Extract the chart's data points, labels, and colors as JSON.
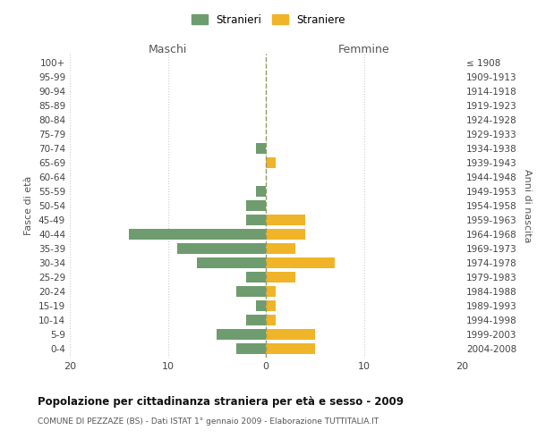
{
  "age_groups": [
    "0-4",
    "5-9",
    "10-14",
    "15-19",
    "20-24",
    "25-29",
    "30-34",
    "35-39",
    "40-44",
    "45-49",
    "50-54",
    "55-59",
    "60-64",
    "65-69",
    "70-74",
    "75-79",
    "80-84",
    "85-89",
    "90-94",
    "95-99",
    "100+"
  ],
  "birth_years": [
    "2004-2008",
    "1999-2003",
    "1994-1998",
    "1989-1993",
    "1984-1988",
    "1979-1983",
    "1974-1978",
    "1969-1973",
    "1964-1968",
    "1959-1963",
    "1954-1958",
    "1949-1953",
    "1944-1948",
    "1939-1943",
    "1934-1938",
    "1929-1933",
    "1924-1928",
    "1919-1923",
    "1914-1918",
    "1909-1913",
    "≤ 1908"
  ],
  "maschi": [
    3,
    5,
    2,
    1,
    3,
    2,
    7,
    9,
    14,
    2,
    2,
    1,
    0,
    0,
    1,
    0,
    0,
    0,
    0,
    0,
    0
  ],
  "femmine": [
    5,
    5,
    1,
    1,
    1,
    3,
    7,
    3,
    4,
    4,
    0,
    0,
    0,
    1,
    0,
    0,
    0,
    0,
    0,
    0,
    0
  ],
  "color_maschi": "#6e9c6e",
  "color_femmine": "#f0b429",
  "title": "Popolazione per cittadinanza straniera per età e sesso - 2009",
  "subtitle": "COMUNE DI PEZZAZE (BS) - Dati ISTAT 1° gennaio 2009 - Elaborazione TUTTITALIA.IT",
  "xlabel_left": "Maschi",
  "xlabel_right": "Femmine",
  "ylabel_left": "Fasce di età",
  "ylabel_right": "Anni di nascita",
  "legend_maschi": "Stranieri",
  "legend_femmine": "Straniere",
  "xlim": 20,
  "background_color": "#ffffff",
  "grid_color": "#cccccc"
}
